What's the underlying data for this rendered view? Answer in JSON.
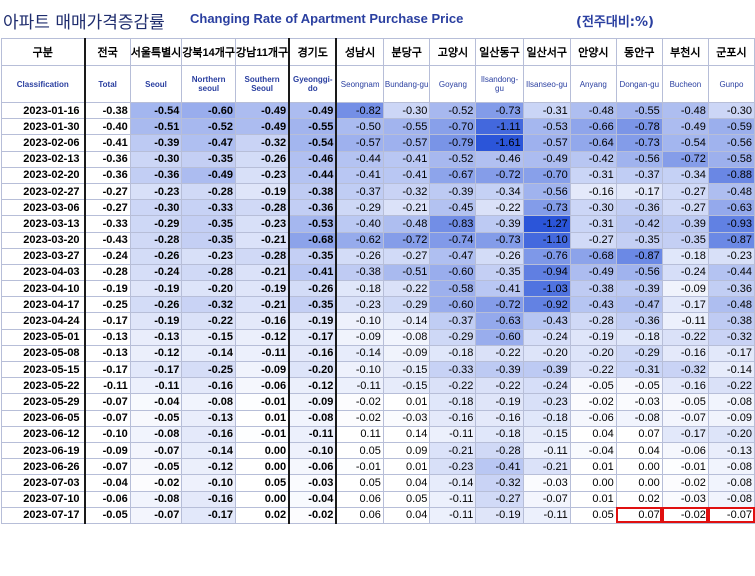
{
  "title": {
    "korean": "아파트 매매가격증감률",
    "english": "Changing Rate of Apartment Purchase Price",
    "unit": "(전주대비:%)"
  },
  "chart_data": {
    "type": "table",
    "columns": [
      {
        "kr": "구분",
        "en": "Classification"
      },
      {
        "kr": "전국",
        "en": "Total"
      },
      {
        "kr": "서울특별시",
        "en": "Seoul"
      },
      {
        "kr": "강북14개구",
        "en": "Northern seoul"
      },
      {
        "kr": "강남11개구",
        "en": "Southern Seoul"
      },
      {
        "kr": "경기도",
        "en": "Gyeonggi-do"
      },
      {
        "kr": "성남시",
        "en": "Seongnam"
      },
      {
        "kr": "분당구",
        "en": "Bundang-gu"
      },
      {
        "kr": "고양시",
        "en": "Goyang"
      },
      {
        "kr": "일산동구",
        "en": "Ilsandong-gu"
      },
      {
        "kr": "일산서구",
        "en": "Ilsanseo-gu"
      },
      {
        "kr": "안양시",
        "en": "Anyang"
      },
      {
        "kr": "동안구",
        "en": "Dongan-gu"
      },
      {
        "kr": "부천시",
        "en": "Bucheon"
      },
      {
        "kr": "군포시",
        "en": "Gunpo"
      }
    ],
    "rows": [
      {
        "date": "2023-01-16",
        "values": [
          -0.38,
          -0.54,
          -0.6,
          -0.49,
          -0.49,
          -0.82,
          -0.3,
          -0.52,
          -0.73,
          -0.31,
          -0.48,
          -0.55,
          -0.48,
          -0.3
        ]
      },
      {
        "date": "2023-01-30",
        "values": [
          -0.4,
          -0.51,
          -0.52,
          -0.49,
          -0.55,
          -0.5,
          -0.55,
          -0.7,
          -1.11,
          -0.53,
          -0.66,
          -0.78,
          -0.49,
          -0.59
        ]
      },
      {
        "date": "2023-02-06",
        "values": [
          -0.41,
          -0.39,
          -0.47,
          -0.32,
          -0.54,
          -0.57,
          -0.57,
          -0.79,
          -1.61,
          -0.57,
          -0.64,
          -0.73,
          -0.54,
          -0.56
        ]
      },
      {
        "date": "2023-02-13",
        "values": [
          -0.36,
          -0.3,
          -0.35,
          -0.26,
          -0.46,
          -0.44,
          -0.41,
          -0.52,
          -0.46,
          -0.49,
          -0.42,
          -0.56,
          -0.72,
          -0.58
        ]
      },
      {
        "date": "2023-02-20",
        "values": [
          -0.36,
          -0.36,
          -0.49,
          -0.23,
          -0.44,
          -0.41,
          -0.41,
          -0.67,
          -0.72,
          -0.7,
          -0.31,
          -0.37,
          -0.34,
          -0.88
        ]
      },
      {
        "date": "2023-02-27",
        "values": [
          -0.27,
          -0.23,
          -0.28,
          -0.19,
          -0.38,
          -0.37,
          -0.32,
          -0.39,
          -0.34,
          -0.56,
          -0.16,
          -0.17,
          -0.27,
          -0.48
        ]
      },
      {
        "date": "2023-03-06",
        "values": [
          -0.27,
          -0.3,
          -0.33,
          -0.28,
          -0.36,
          -0.29,
          -0.21,
          -0.45,
          -0.22,
          -0.73,
          -0.3,
          -0.36,
          -0.27,
          -0.63
        ]
      },
      {
        "date": "2023-03-13",
        "values": [
          -0.33,
          -0.29,
          -0.35,
          -0.23,
          -0.53,
          -0.4,
          -0.48,
          -0.83,
          -0.39,
          -1.27,
          -0.31,
          -0.42,
          -0.39,
          -0.93
        ]
      },
      {
        "date": "2023-03-20",
        "values": [
          -0.43,
          -0.28,
          -0.35,
          -0.21,
          -0.68,
          -0.62,
          -0.72,
          -0.74,
          -0.73,
          -1.1,
          -0.27,
          -0.35,
          -0.35,
          -0.87
        ]
      },
      {
        "date": "2023-03-27",
        "values": [
          -0.24,
          -0.26,
          -0.23,
          -0.28,
          -0.35,
          -0.26,
          -0.27,
          -0.47,
          -0.26,
          -0.76,
          -0.68,
          -0.87,
          -0.18,
          -0.23
        ]
      },
      {
        "date": "2023-04-03",
        "values": [
          -0.28,
          -0.24,
          -0.28,
          -0.21,
          -0.41,
          -0.38,
          -0.51,
          -0.6,
          -0.35,
          -0.94,
          -0.49,
          -0.56,
          -0.24,
          -0.44
        ]
      },
      {
        "date": "2023-04-10",
        "values": [
          -0.19,
          -0.19,
          -0.2,
          -0.19,
          -0.26,
          -0.18,
          -0.22,
          -0.58,
          -0.41,
          -1.03,
          -0.38,
          -0.39,
          -0.09,
          -0.36
        ]
      },
      {
        "date": "2023-04-17",
        "values": [
          -0.25,
          -0.26,
          -0.32,
          -0.21,
          -0.35,
          -0.23,
          -0.29,
          -0.6,
          -0.72,
          -0.92,
          -0.43,
          -0.47,
          -0.17,
          -0.48
        ]
      },
      {
        "date": "2023-04-24",
        "values": [
          -0.17,
          -0.19,
          -0.22,
          -0.16,
          -0.19,
          -0.1,
          -0.14,
          -0.37,
          -0.63,
          -0.43,
          -0.28,
          -0.36,
          -0.11,
          -0.38
        ]
      },
      {
        "date": "2023-05-01",
        "values": [
          -0.13,
          -0.13,
          -0.15,
          -0.12,
          -0.17,
          -0.09,
          -0.08,
          -0.29,
          -0.6,
          -0.24,
          -0.19,
          -0.18,
          -0.22,
          -0.32
        ]
      },
      {
        "date": "2023-05-08",
        "values": [
          -0.13,
          -0.12,
          -0.14,
          -0.11,
          -0.16,
          -0.14,
          -0.09,
          -0.18,
          -0.22,
          -0.2,
          -0.2,
          -0.29,
          -0.16,
          -0.17
        ]
      },
      {
        "date": "2023-05-15",
        "values": [
          -0.17,
          -0.17,
          -0.25,
          -0.09,
          -0.2,
          -0.1,
          -0.15,
          -0.33,
          -0.39,
          -0.39,
          -0.22,
          -0.31,
          -0.32,
          -0.14
        ]
      },
      {
        "date": "2023-05-22",
        "values": [
          -0.11,
          -0.11,
          -0.16,
          -0.06,
          -0.12,
          -0.11,
          -0.15,
          -0.22,
          -0.22,
          -0.24,
          -0.05,
          -0.05,
          -0.16,
          -0.22
        ]
      },
      {
        "date": "2023-05-29",
        "values": [
          -0.07,
          -0.04,
          -0.08,
          -0.01,
          -0.09,
          -0.02,
          0.01,
          -0.18,
          -0.19,
          -0.23,
          -0.02,
          -0.03,
          -0.05,
          -0.08
        ]
      },
      {
        "date": "2023-06-05",
        "values": [
          -0.07,
          -0.05,
          -0.13,
          0.01,
          -0.08,
          -0.02,
          -0.03,
          -0.16,
          -0.16,
          -0.18,
          -0.06,
          -0.08,
          -0.07,
          -0.09
        ]
      },
      {
        "date": "2023-06-12",
        "values": [
          -0.1,
          -0.08,
          -0.16,
          -0.01,
          -0.11,
          0.11,
          0.14,
          -0.11,
          -0.18,
          -0.15,
          0.04,
          0.07,
          -0.17,
          -0.2
        ]
      },
      {
        "date": "2023-06-19",
        "values": [
          -0.09,
          -0.07,
          -0.14,
          0.0,
          -0.1,
          0.05,
          0.09,
          -0.21,
          -0.28,
          -0.11,
          -0.04,
          0.04,
          -0.06,
          -0.13
        ]
      },
      {
        "date": "2023-06-26",
        "values": [
          -0.07,
          -0.05,
          -0.12,
          0.0,
          -0.06,
          -0.01,
          0.01,
          -0.23,
          -0.41,
          -0.21,
          0.01,
          0.0,
          -0.01,
          -0.08
        ]
      },
      {
        "date": "2023-07-03",
        "values": [
          -0.04,
          -0.02,
          -0.1,
          0.05,
          -0.03,
          0.05,
          0.04,
          -0.14,
          -0.32,
          -0.03,
          0.0,
          0.0,
          -0.02,
          -0.08
        ]
      },
      {
        "date": "2023-07-10",
        "values": [
          -0.06,
          -0.08,
          -0.16,
          0.0,
          -0.04,
          0.06,
          0.05,
          -0.11,
          -0.27,
          -0.07,
          0.01,
          0.02,
          -0.03,
          -0.08
        ]
      },
      {
        "date": "2023-07-17",
        "values": [
          -0.05,
          -0.07,
          -0.17,
          0.02,
          -0.02,
          0.06,
          0.04,
          -0.11,
          -0.19,
          -0.11,
          0.05,
          0.07,
          -0.02,
          -0.07
        ]
      }
    ],
    "highlighted": [
      {
        "row": "2023-07-17",
        "column": "동안구"
      },
      {
        "row": "2023-07-17",
        "column": "부천시"
      },
      {
        "row": "2023-07-17",
        "column": "군포시"
      }
    ],
    "colors": {
      "cell_min": "#2b55d9",
      "cell_max": "#ffffff",
      "header_text": "#1f3a93",
      "highlight": "#e01010"
    }
  }
}
